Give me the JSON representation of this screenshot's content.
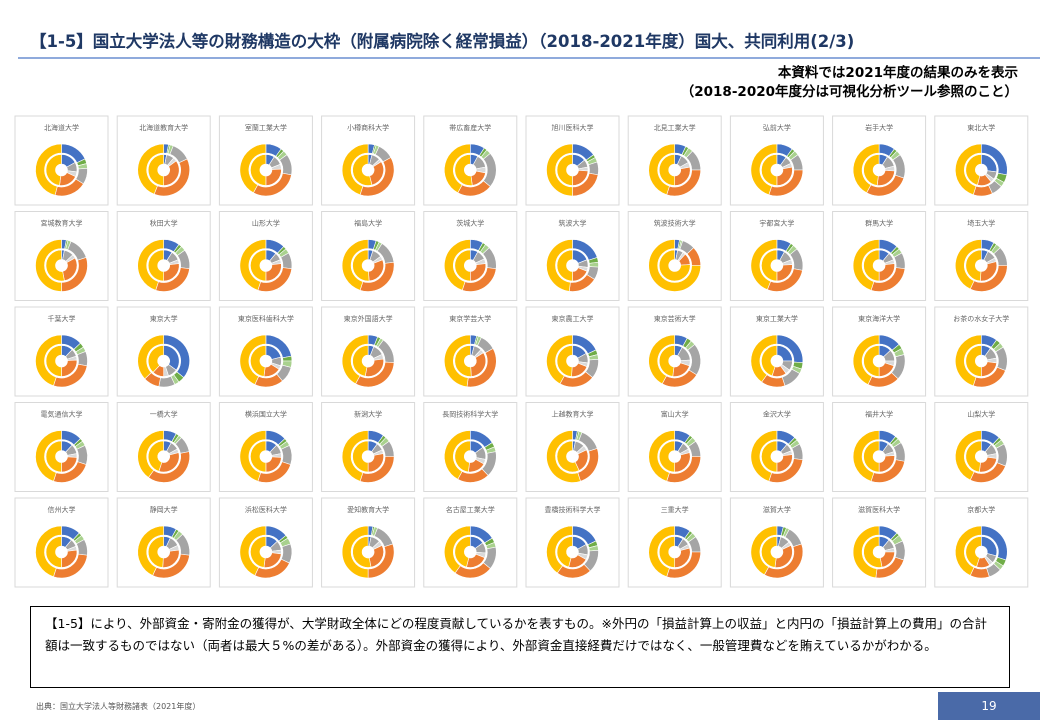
{
  "header": {
    "title": "【1-5】国立大学法人等の財務構造の大枠（附属病院除く経常損益）（2018-2021年度）国大、共同利用(2/3)",
    "note": [
      "本資料では2021年度の結果のみを表示",
      "（2018-2020年度分は可視化分析ツール参照のこと）"
    ]
  },
  "palette": {
    "outer": [
      "#4472c4",
      "#70ad47",
      "#a9d18e",
      "#a5a5a5",
      "#ed7d31",
      "#ffc000"
    ],
    "inner": [
      "#4472c4",
      "#a5a5a5",
      "#d9d9d9",
      "#ed7d31",
      "#ffc000"
    ]
  },
  "chart_data": [
    {
      "type": "donut",
      "title": "北海道大学",
      "outer": [
        18,
        3,
        3,
        10,
        20,
        46
      ],
      "inner": [
        17,
        10,
        5,
        20,
        48
      ]
    },
    {
      "type": "donut",
      "title": "北海道教育大学",
      "outer": [
        3,
        1,
        2,
        12,
        38,
        44
      ],
      "inner": [
        3,
        8,
        4,
        35,
        50
      ]
    },
    {
      "type": "donut",
      "title": "室蘭工業大学",
      "outer": [
        10,
        2,
        3,
        13,
        30,
        42
      ],
      "inner": [
        9,
        10,
        5,
        26,
        50
      ]
    },
    {
      "type": "donut",
      "title": "小樽商科大学",
      "outer": [
        4,
        1,
        2,
        10,
        38,
        45
      ],
      "inner": [
        4,
        9,
        3,
        30,
        54
      ]
    },
    {
      "type": "donut",
      "title": "帯広畜産大学",
      "outer": [
        9,
        2,
        3,
        22,
        22,
        42
      ],
      "inner": [
        8,
        14,
        6,
        20,
        52
      ]
    },
    {
      "type": "donut",
      "title": "旭川医科大学",
      "outer": [
        15,
        2,
        3,
        8,
        22,
        50
      ],
      "inner": [
        14,
        8,
        4,
        24,
        50
      ]
    },
    {
      "type": "donut",
      "title": "北見工業大学",
      "outer": [
        7,
        2,
        3,
        13,
        30,
        45
      ],
      "inner": [
        7,
        10,
        5,
        28,
        50
      ]
    },
    {
      "type": "donut",
      "title": "弘前大学",
      "outer": [
        10,
        2,
        3,
        10,
        30,
        45
      ],
      "inner": [
        10,
        8,
        4,
        28,
        50
      ]
    },
    {
      "type": "donut",
      "title": "岩手大学",
      "outer": [
        10,
        2,
        3,
        15,
        28,
        42
      ],
      "inner": [
        9,
        12,
        5,
        26,
        48
      ]
    },
    {
      "type": "donut",
      "title": "東北大学",
      "outer": [
        28,
        5,
        3,
        7,
        12,
        45
      ],
      "inner": [
        27,
        8,
        4,
        15,
        46
      ]
    },
    {
      "type": "donut",
      "title": "宮城教育大学",
      "outer": [
        3,
        1,
        2,
        14,
        30,
        50
      ],
      "inner": [
        3,
        10,
        4,
        30,
        53
      ]
    },
    {
      "type": "donut",
      "title": "秋田大学",
      "outer": [
        10,
        2,
        3,
        12,
        28,
        45
      ],
      "inner": [
        9,
        10,
        4,
        27,
        50
      ]
    },
    {
      "type": "donut",
      "title": "山形大学",
      "outer": [
        12,
        2,
        3,
        10,
        28,
        45
      ],
      "inner": [
        11,
        8,
        4,
        27,
        50
      ]
    },
    {
      "type": "donut",
      "title": "福島大学",
      "outer": [
        5,
        2,
        2,
        14,
        32,
        45
      ],
      "inner": [
        5,
        10,
        4,
        30,
        51
      ]
    },
    {
      "type": "donut",
      "title": "茨城大学",
      "outer": [
        8,
        2,
        3,
        14,
        28,
        45
      ],
      "inner": [
        8,
        10,
        5,
        27,
        50
      ]
    },
    {
      "type": "donut",
      "title": "筑波大学",
      "outer": [
        20,
        3,
        3,
        8,
        18,
        48
      ],
      "inner": [
        19,
        8,
        4,
        19,
        50
      ]
    },
    {
      "type": "donut",
      "title": "筑波技術大学",
      "outer": [
        3,
        1,
        1,
        8,
        12,
        75
      ],
      "inner": [
        3,
        6,
        3,
        12,
        76
      ]
    },
    {
      "type": "donut",
      "title": "宇都宮大学",
      "outer": [
        9,
        2,
        3,
        14,
        28,
        44
      ],
      "inner": [
        8,
        11,
        5,
        26,
        50
      ]
    },
    {
      "type": "donut",
      "title": "群馬大学",
      "outer": [
        12,
        2,
        3,
        10,
        28,
        45
      ],
      "inner": [
        11,
        8,
        4,
        27,
        50
      ]
    },
    {
      "type": "donut",
      "title": "埼玉大学",
      "outer": [
        8,
        2,
        3,
        12,
        32,
        43
      ],
      "inner": [
        7,
        10,
        4,
        30,
        49
      ]
    },
    {
      "type": "donut",
      "title": "千葉大学",
      "outer": [
        13,
        3,
        3,
        9,
        27,
        45
      ],
      "inner": [
        12,
        8,
        4,
        26,
        50
      ]
    },
    {
      "type": "donut",
      "title": "東京大学",
      "outer": [
        36,
        4,
        3,
        10,
        10,
        37
      ],
      "inner": [
        35,
        10,
        5,
        12,
        38
      ]
    },
    {
      "type": "donut",
      "title": "東京医科歯科大学",
      "outer": [
        22,
        3,
        4,
        10,
        18,
        43
      ],
      "inner": [
        21,
        9,
        4,
        18,
        48
      ]
    },
    {
      "type": "donut",
      "title": "東京外国語大学",
      "outer": [
        6,
        2,
        2,
        16,
        32,
        42
      ],
      "inner": [
        6,
        12,
        5,
        30,
        47
      ]
    },
    {
      "type": "donut",
      "title": "東京学芸大学",
      "outer": [
        4,
        1,
        2,
        10,
        35,
        48
      ],
      "inner": [
        4,
        8,
        4,
        33,
        51
      ]
    },
    {
      "type": "donut",
      "title": "東京農工大学",
      "outer": [
        18,
        3,
        3,
        12,
        22,
        42
      ],
      "inner": [
        17,
        10,
        4,
        20,
        49
      ]
    },
    {
      "type": "donut",
      "title": "東京芸術大学",
      "outer": [
        8,
        3,
        3,
        20,
        24,
        42
      ],
      "inner": [
        8,
        16,
        6,
        22,
        48
      ]
    },
    {
      "type": "donut",
      "title": "東京工業大学",
      "outer": [
        26,
        4,
        3,
        12,
        15,
        40
      ],
      "inner": [
        25,
        10,
        5,
        15,
        45
      ]
    },
    {
      "type": "donut",
      "title": "東京海洋大学",
      "outer": [
        14,
        3,
        4,
        16,
        20,
        43
      ],
      "inner": [
        13,
        12,
        5,
        20,
        50
      ]
    },
    {
      "type": "donut",
      "title": "お茶の水女子大学",
      "outer": [
        10,
        3,
        3,
        15,
        24,
        45
      ],
      "inner": [
        10,
        12,
        5,
        23,
        50
      ]
    },
    {
      "type": "donut",
      "title": "電気通信大学",
      "outer": [
        13,
        2,
        3,
        12,
        25,
        45
      ],
      "inner": [
        12,
        10,
        4,
        24,
        50
      ]
    },
    {
      "type": "donut",
      "title": "一橋大学",
      "outer": [
        8,
        2,
        2,
        10,
        38,
        40
      ],
      "inner": [
        8,
        9,
        4,
        34,
        45
      ]
    },
    {
      "type": "donut",
      "title": "横浜国立大学",
      "outer": [
        13,
        2,
        3,
        12,
        25,
        45
      ],
      "inner": [
        12,
        10,
        4,
        24,
        50
      ]
    },
    {
      "type": "donut",
      "title": "新潟大学",
      "outer": [
        10,
        2,
        3,
        10,
        30,
        45
      ],
      "inner": [
        10,
        8,
        4,
        28,
        50
      ]
    },
    {
      "type": "donut",
      "title": "長岡技術科学大学",
      "outer": [
        16,
        3,
        3,
        16,
        20,
        42
      ],
      "inner": [
        15,
        13,
        5,
        19,
        48
      ]
    },
    {
      "type": "donut",
      "title": "上越教育大学",
      "outer": [
        3,
        1,
        2,
        14,
        25,
        55
      ],
      "inner": [
        3,
        10,
        5,
        25,
        57
      ]
    },
    {
      "type": "donut",
      "title": "富山大学",
      "outer": [
        10,
        2,
        3,
        10,
        30,
        45
      ],
      "inner": [
        9,
        8,
        4,
        29,
        50
      ]
    },
    {
      "type": "donut",
      "title": "金沢大学",
      "outer": [
        12,
        2,
        3,
        10,
        28,
        45
      ],
      "inner": [
        11,
        8,
        4,
        27,
        50
      ]
    },
    {
      "type": "donut",
      "title": "福井大学",
      "outer": [
        11,
        2,
        3,
        12,
        27,
        45
      ],
      "inner": [
        10,
        10,
        4,
        26,
        50
      ]
    },
    {
      "type": "donut",
      "title": "山梨大学",
      "outer": [
        12,
        2,
        3,
        14,
        26,
        43
      ],
      "inner": [
        11,
        11,
        5,
        25,
        48
      ]
    },
    {
      "type": "donut",
      "title": "信州大学",
      "outer": [
        12,
        2,
        3,
        10,
        28,
        45
      ],
      "inner": [
        11,
        8,
        4,
        27,
        50
      ]
    },
    {
      "type": "donut",
      "title": "静岡大学",
      "outer": [
        8,
        2,
        3,
        14,
        30,
        43
      ],
      "inner": [
        7,
        11,
        5,
        28,
        49
      ]
    },
    {
      "type": "donut",
      "title": "浜松医科大学",
      "outer": [
        14,
        2,
        4,
        12,
        25,
        43
      ],
      "inner": [
        13,
        10,
        4,
        25,
        48
      ]
    },
    {
      "type": "donut",
      "title": "愛知教育大学",
      "outer": [
        3,
        1,
        2,
        14,
        30,
        50
      ],
      "inner": [
        3,
        10,
        5,
        29,
        53
      ]
    },
    {
      "type": "donut",
      "title": "名古屋工業大学",
      "outer": [
        16,
        3,
        3,
        14,
        24,
        40
      ],
      "inner": [
        15,
        11,
        5,
        23,
        46
      ]
    },
    {
      "type": "donut",
      "title": "豊橋技術科学大学",
      "outer": [
        18,
        3,
        3,
        14,
        22,
        40
      ],
      "inner": [
        17,
        11,
        5,
        21,
        46
      ]
    },
    {
      "type": "donut",
      "title": "三重大学",
      "outer": [
        10,
        2,
        3,
        10,
        30,
        45
      ],
      "inner": [
        9,
        8,
        4,
        29,
        50
      ]
    },
    {
      "type": "donut",
      "title": "滋賀大学",
      "outer": [
        4,
        2,
        2,
        12,
        38,
        42
      ],
      "inner": [
        4,
        10,
        4,
        34,
        48
      ]
    },
    {
      "type": "donut",
      "title": "滋賀医科大学",
      "outer": [
        12,
        2,
        4,
        12,
        22,
        48
      ],
      "inner": [
        11,
        10,
        4,
        22,
        53
      ]
    },
    {
      "type": "donut",
      "title": "京都大学",
      "outer": [
        30,
        4,
        3,
        8,
        12,
        43
      ],
      "inner": [
        29,
        8,
        4,
        14,
        45
      ]
    }
  ],
  "description": "【1-5】により、外部資金・寄附金の獲得が、大学財政全体にどの程度貢献しているかを表すもの。※外円の「損益計算上の収益」と内円の「損益計算上の費用」の合計額は一致するものではない（両者は最大５%の差がある）。外部資金の獲得により、外部資金直接経費だけではなく、一般管理費などを賄えているかがわかる。",
  "footer": {
    "source": "出典：国立大学法人等財務諸表（2021年度）",
    "page": "19"
  }
}
